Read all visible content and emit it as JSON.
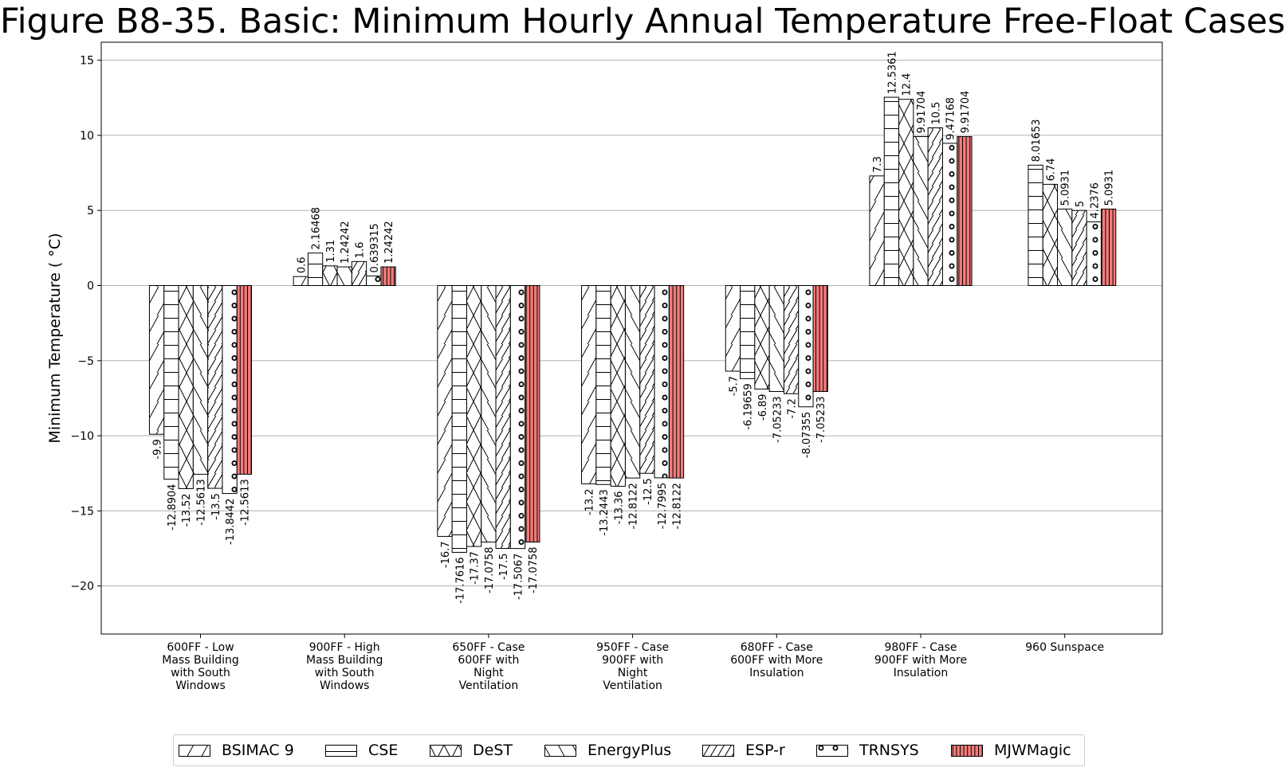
{
  "chart_data": {
    "type": "bar",
    "title": "Figure B8-35. Basic: Minimum Hourly Annual Temperature Free-Float Cases",
    "xlabel": "",
    "ylabel": "Minimum Temperature ($^\\circ$C)",
    "ylabel_display": "Minimum Temperature ( °C)",
    "ylim": [
      -23.2,
      16.2
    ],
    "yticks": [
      15,
      10,
      5,
      0,
      -5,
      -10,
      -15,
      -20
    ],
    "ytick_labels": [
      "15",
      "10",
      "5",
      "0",
      "−5",
      "−10",
      "−15",
      "−20"
    ],
    "grid": "horizontal",
    "legend_position": "bottom",
    "categories": [
      [
        "600FF - Low",
        "Mass Building",
        "with South",
        "Windows"
      ],
      [
        "900FF - High",
        "Mass Building",
        "with South",
        "Windows"
      ],
      [
        "650FF - Case",
        "600FF with",
        "Night",
        "Ventilation"
      ],
      [
        "950FF - Case",
        "900FF with",
        "Night",
        "Ventilation"
      ],
      [
        "680FF - Case",
        "600FF with More",
        "Insulation"
      ],
      [
        "980FF - Case",
        "900FF with More",
        "Insulation"
      ],
      [
        "960 Sunspace"
      ]
    ],
    "series": [
      {
        "name": "BSIMAC 9",
        "pattern": "slash",
        "color": "#ffffff",
        "values": [
          -9.9,
          0.6,
          -16.7,
          -13.2,
          -5.7,
          7.3,
          null
        ],
        "labels": [
          "-9.9",
          "0.6",
          "-16.7",
          "-13.2",
          "-5.7",
          "7.3",
          ""
        ]
      },
      {
        "name": "CSE",
        "pattern": "hline",
        "color": "#ffffff",
        "values": [
          -12.8904,
          2.16468,
          -17.7616,
          -13.2443,
          -6.19659,
          12.5361,
          8.01653
        ],
        "labels": [
          "-12.8904",
          "2.16468",
          "-17.7616",
          "-13.2443",
          "-6.19659",
          "12.5361",
          "8.01653"
        ]
      },
      {
        "name": "DeST",
        "pattern": "cross",
        "color": "#ffffff",
        "values": [
          -13.52,
          1.31,
          -17.37,
          -13.36,
          -6.89,
          12.4,
          6.74
        ],
        "labels": [
          "-13.52",
          "1.31",
          "-17.37",
          "-13.36",
          "-6.89",
          "12.4",
          "6.74"
        ]
      },
      {
        "name": "EnergyPlus",
        "pattern": "backslash",
        "color": "#ffffff",
        "values": [
          -12.5613,
          1.24242,
          -17.0758,
          -12.8122,
          -7.05233,
          9.91704,
          5.0931
        ],
        "labels": [
          "-12.5613",
          "1.24242",
          "-17.0758",
          "-12.8122",
          "-7.05233",
          "9.91704",
          "5.0931"
        ]
      },
      {
        "name": "ESP-r",
        "pattern": "dslash",
        "color": "#ffffff",
        "values": [
          -13.5,
          1.6,
          -17.5,
          -12.5,
          -7.2,
          10.5,
          5
        ],
        "labels": [
          "-13.5",
          "1.6",
          "-17.5",
          "-12.5",
          "-7.2",
          "10.5",
          "5"
        ]
      },
      {
        "name": "TRNSYS",
        "pattern": "circles",
        "color": "#ffffff",
        "values": [
          -13.8442,
          0.639315,
          -17.5067,
          -12.7995,
          -8.07355,
          9.47168,
          4.2376
        ],
        "labels": [
          "-13.8442",
          "0.639315",
          "-17.5067",
          "-12.7995",
          "-8.07355",
          "9.47168",
          "4.2376"
        ]
      },
      {
        "name": "MJWMagic",
        "pattern": "vline",
        "color": "#f47c7c",
        "values": [
          -12.5613,
          1.24242,
          -17.0758,
          -12.8122,
          -7.05233,
          9.91704,
          5.0931
        ],
        "labels": [
          "-12.5613",
          "1.24242",
          "-17.0758",
          "-12.8122",
          "-7.05233",
          "9.91704",
          "5.0931"
        ]
      }
    ]
  }
}
